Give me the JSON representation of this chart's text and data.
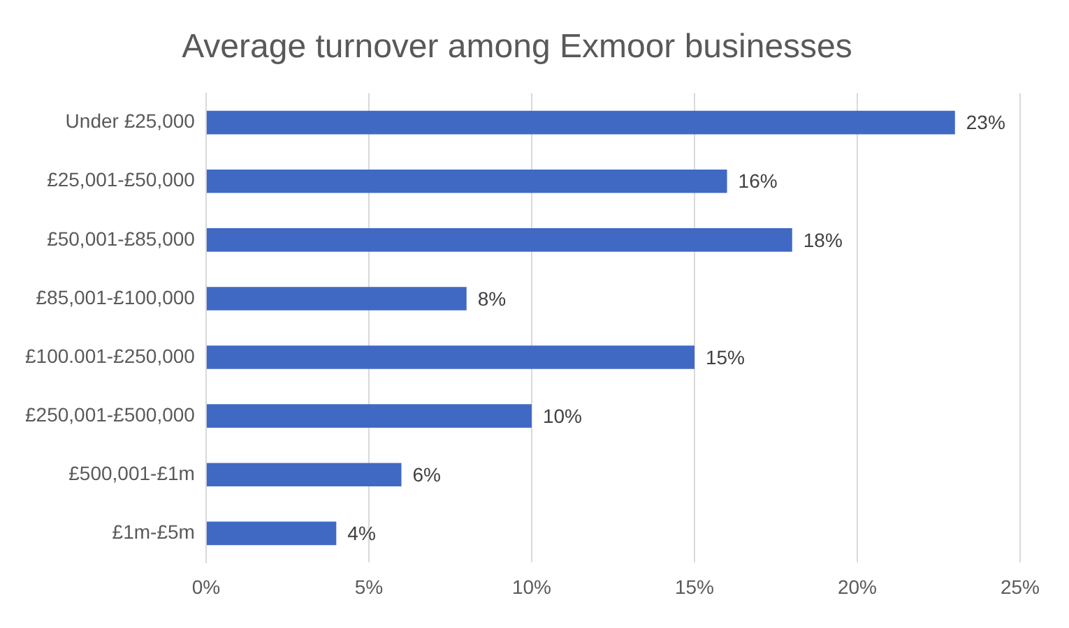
{
  "chart_data": {
    "type": "bar",
    "orientation": "horizontal",
    "title": "Average turnover among Exmoor businesses",
    "categories": [
      "Under £25,000",
      "£25,001-£50,000",
      "£50,001-£85,000",
      "£85,001-£100,000",
      "£100.001-£250,000",
      "£250,001-£500,000",
      "£500,001-£1m",
      "£1m-£5m"
    ],
    "values": [
      23,
      16,
      18,
      8,
      15,
      10,
      6,
      4
    ],
    "value_labels": [
      "23%",
      "16%",
      "18%",
      "8%",
      "15%",
      "10%",
      "6%",
      "4%"
    ],
    "color": "#4069c4",
    "xlim": [
      0,
      25
    ],
    "xticks": [
      {
        "value": 0,
        "label": "0%"
      },
      {
        "value": 5,
        "label": "5%"
      },
      {
        "value": 10,
        "label": "10%"
      },
      {
        "value": 15,
        "label": "15%"
      },
      {
        "value": 20,
        "label": "20%"
      },
      {
        "value": 25,
        "label": "25%"
      }
    ],
    "grid": "x",
    "legend": false
  }
}
